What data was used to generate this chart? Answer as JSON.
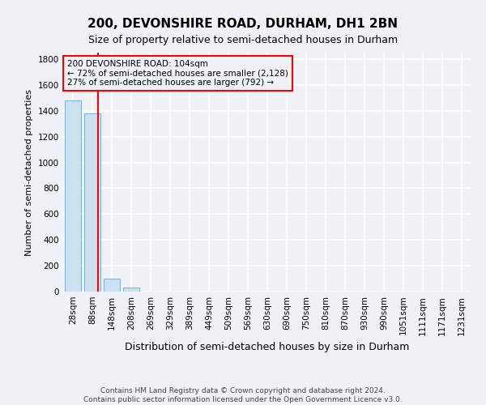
{
  "title": "200, DEVONSHIRE ROAD, DURHAM, DH1 2BN",
  "subtitle": "Size of property relative to semi-detached houses in Durham",
  "xlabel": "Distribution of semi-detached houses by size in Durham",
  "ylabel": "Number of semi-detached properties",
  "categories": [
    "28sqm",
    "88sqm",
    "148sqm",
    "208sqm",
    "269sqm",
    "329sqm",
    "389sqm",
    "449sqm",
    "509sqm",
    "569sqm",
    "630sqm",
    "690sqm",
    "750sqm",
    "810sqm",
    "870sqm",
    "930sqm",
    "990sqm",
    "1051sqm",
    "1111sqm",
    "1171sqm",
    "1231sqm"
  ],
  "values": [
    1480,
    1380,
    100,
    30,
    2,
    1,
    0,
    0,
    0,
    0,
    0,
    0,
    0,
    0,
    0,
    0,
    0,
    0,
    0,
    0,
    0
  ],
  "bar_color": "#cce0f0",
  "bar_edge_color": "#7bafd4",
  "property_line_x": 1.28,
  "ylim": [
    0,
    1850
  ],
  "annotation_text": "200 DEVONSHIRE ROAD: 104sqm\n← 72% of semi-detached houses are smaller (2,128)\n27% of semi-detached houses are larger (792) →",
  "footer_line1": "Contains HM Land Registry data © Crown copyright and database right 2024.",
  "footer_line2": "Contains public sector information licensed under the Open Government Licence v3.0.",
  "background_color": "#eef2f7",
  "grid_color": "#ffffff",
  "title_fontsize": 11,
  "subtitle_fontsize": 9,
  "ylabel_fontsize": 8,
  "xlabel_fontsize": 9,
  "tick_fontsize": 7.5,
  "annotation_fontsize": 7.5,
  "footer_fontsize": 6.5
}
